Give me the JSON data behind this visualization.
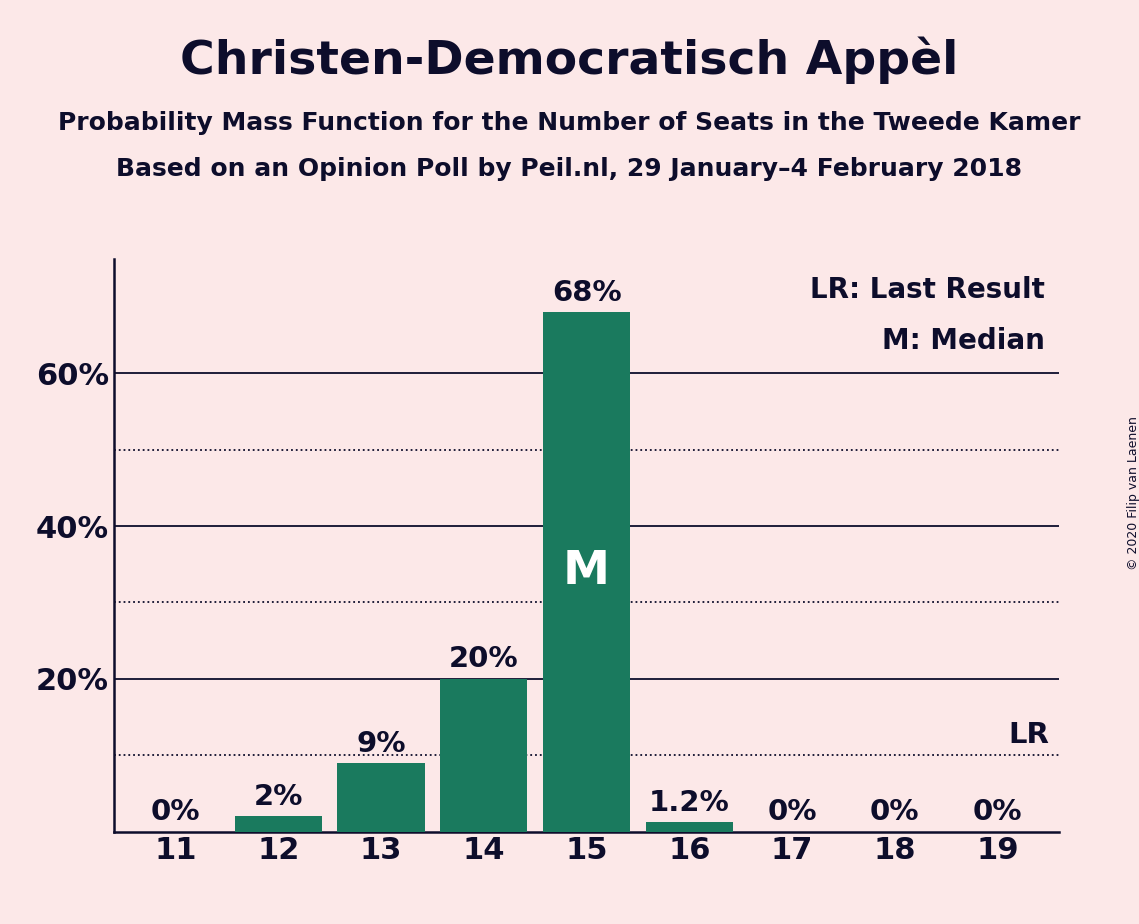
{
  "title": "Christen-Democratisch Appèl",
  "subtitle1": "Probability Mass Function for the Number of Seats in the Tweede Kamer",
  "subtitle2": "Based on an Opinion Poll by Peil.nl, 29 January–4 February 2018",
  "copyright": "© 2020 Filip van Laenen",
  "categories": [
    11,
    12,
    13,
    14,
    15,
    16,
    17,
    18,
    19
  ],
  "values": [
    0.0,
    2.0,
    9.0,
    20.0,
    68.0,
    1.2,
    0.0,
    0.0,
    0.0
  ],
  "bar_color": "#1a7a5e",
  "background_color": "#fce8e8",
  "text_color": "#0d0d2b",
  "bar_labels": [
    "0%",
    "2%",
    "9%",
    "20%",
    "68%",
    "1.2%",
    "0%",
    "0%",
    "0%"
  ],
  "median_seat": 15,
  "median_label": "M",
  "lr_value": 10.0,
  "lr_label": "LR",
  "yticks": [
    0,
    20,
    40,
    60
  ],
  "ytick_labels": [
    "",
    "20%",
    "40%",
    "60%"
  ],
  "solid_lines": [
    20,
    40,
    60
  ],
  "dotted_lines": [
    10,
    30,
    50
  ],
  "ylim": [
    0,
    75
  ],
  "legend_line1": "LR: Last Result",
  "legend_line2": "M: Median",
  "title_fontsize": 34,
  "subtitle_fontsize": 18,
  "tick_fontsize": 22,
  "bar_label_fontsize": 21,
  "legend_fontsize": 20,
  "median_label_fontsize": 34,
  "copyright_fontsize": 9
}
